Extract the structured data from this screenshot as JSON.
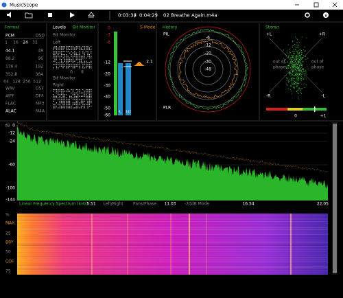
{
  "window": {
    "title": "MusicScope"
  },
  "toolbar": {
    "elapsed": "0:03:38",
    "separator": "/",
    "duration": "0:04:29",
    "track": "02 Breathe Again.m4a"
  },
  "format": {
    "title": "Format",
    "pcm": "PCM",
    "dsd": "DSD",
    "bit_depths": [
      "1",
      "16",
      "24",
      "32"
    ],
    "rates_44": [
      "44.1",
      "88.2",
      "176.4",
      "352.8"
    ],
    "rates_48": [
      "48",
      "96",
      "192",
      "384"
    ],
    "dsd_rates": [
      "64",
      "128",
      "256",
      "512"
    ],
    "containers_left": [
      "WAV",
      "AIFF",
      "FLAC",
      "ALAC"
    ],
    "containers_right": [
      "DSF",
      "DFF",
      "MP3",
      "M4A"
    ]
  },
  "levels": {
    "title": "Levels",
    "mode": "Bit Monitor",
    "left_heading": "Bit Monitor",
    "left": "Left",
    "left_ticks": [
      "0",
      "8"
    ],
    "right_heading": "Bit Monitor",
    "right": "Right"
  },
  "meter": {
    "scale": [
      "0",
      "-3",
      "-6",
      "-12",
      "-20",
      "-30",
      "-40",
      "-50",
      "-60"
    ],
    "mode": "S-Mode",
    "value": "2.1",
    "channels": [
      "L",
      "LU"
    ]
  },
  "history": {
    "title": "History",
    "top": "PIL",
    "bottom": "PLR",
    "rings": [
      "-6",
      "-12",
      "-20",
      "-30",
      "-48"
    ]
  },
  "stereo": {
    "title": "Stereo",
    "corners": [
      "+L",
      "+R",
      "-R",
      "-L"
    ],
    "left_note": [
      "out of",
      "phase"
    ],
    "right_note": [
      "out of",
      "phase"
    ],
    "scale": [
      "0",
      "+1"
    ]
  },
  "spectrum": {
    "unit": "dB",
    "yticks": [
      "0",
      "-12",
      "-24",
      "-60",
      "-100",
      "-144"
    ],
    "caption": "Linear Frequency Spectrum (kHz)",
    "xlabels": [
      "5.51",
      "11.03",
      "16.54",
      "22.05"
    ],
    "modes": [
      "Left/Right",
      "Pans/Phase",
      "-20dB Mode"
    ]
  },
  "spectrogram": {
    "labels": [
      "%",
      "MAX",
      "25",
      "BRY",
      "50",
      "COF",
      "75"
    ]
  }
}
